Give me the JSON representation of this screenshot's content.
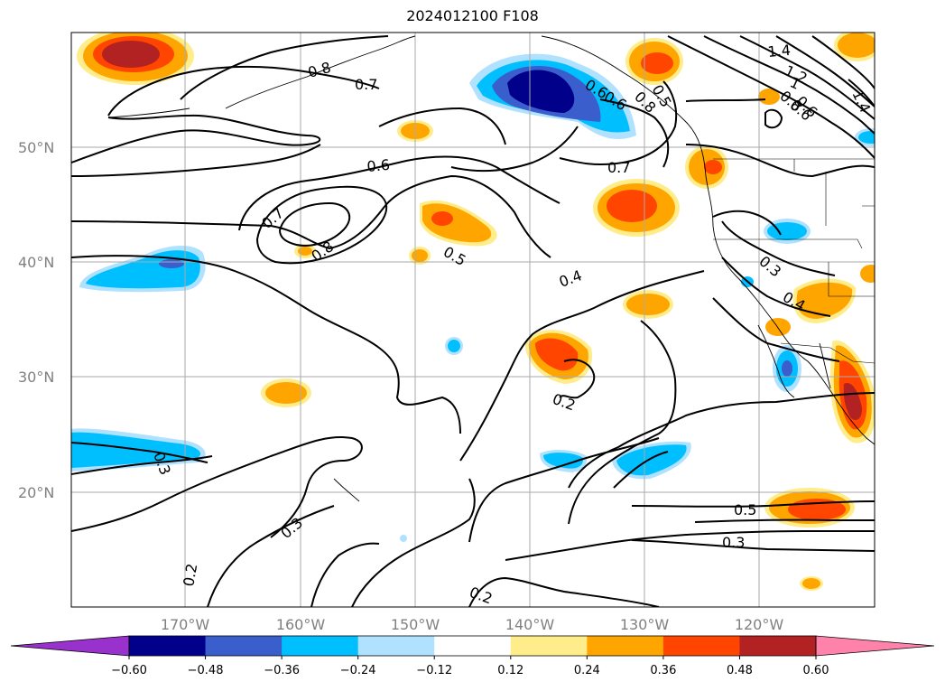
{
  "title": "2024012100 F108",
  "map": {
    "lat_labels": [
      "50°N",
      "40°N",
      "30°N",
      "20°N"
    ],
    "lon_labels": [
      "170°W",
      "160°W",
      "150°W",
      "140°W",
      "130°W",
      "120°W"
    ],
    "contour_labels": [
      "1.4",
      "1.2",
      "1",
      "0.8",
      "0.6",
      "0.8",
      "0.7",
      "0.6",
      "0.5",
      "0.6",
      "0.7",
      "0.6",
      "0.7",
      "0.8",
      "0.5",
      "0.4",
      "0.3",
      "0.4",
      "0.2",
      "0.3",
      "0.3",
      "0.2",
      "0.2",
      "0.5",
      "0.3",
      "1.4",
      "0.8",
      "0.6"
    ]
  },
  "colorbar": {
    "ticks": [
      "−0.60",
      "−0.48",
      "−0.36",
      "−0.24",
      "−0.12",
      "0.12",
      "0.24",
      "0.36",
      "0.48",
      "0.60"
    ],
    "colors": [
      "#9932cc",
      "#00008b",
      "#3a5fcd",
      "#00bfff",
      "#b0e2ff",
      "#ffffff",
      "#ffec8b",
      "#ffa500",
      "#ff4500",
      "#b22222",
      "#ff82ab"
    ]
  }
}
